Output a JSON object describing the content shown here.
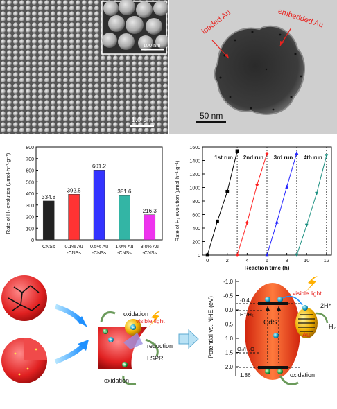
{
  "sem": {
    "scale_main": "1.0 μm",
    "scale_inset": "100 nm"
  },
  "tem": {
    "label_loaded": "loaded Au",
    "label_embedded": "embedded Au",
    "scale": "50 nm"
  },
  "chart_data": [
    {
      "type": "bar",
      "categories": [
        "CNSs",
        "0.1% Au\n-CNSs",
        "0.5% Au\n-CNSs",
        "1.0% Au\n-CNSs",
        "3.0% Au\n-CNSs"
      ],
      "values": [
        334.8,
        392.5,
        601.2,
        381.6,
        216.3
      ],
      "value_labels": [
        "334.8",
        "392.5",
        "601.2",
        "381.6",
        "216.3"
      ],
      "colors": [
        "#222222",
        "#ff3333",
        "#3333ff",
        "#33b5a5",
        "#ee33ee"
      ],
      "ylabel": "Rate of H₂ evolution (μmol·h⁻¹·g⁻¹)",
      "ylim": [
        0,
        800
      ],
      "yticks": [
        0,
        100,
        200,
        300,
        400,
        500,
        600,
        700,
        800
      ]
    },
    {
      "type": "line",
      "xlabel": "Reaction time (h)",
      "ylabel": "Rate of H₂ evolution (μmol·h⁻¹·g⁻¹)",
      "xlim": [
        -0.5,
        12.5
      ],
      "ylim": [
        0,
        1600
      ],
      "xticks": [
        0,
        2,
        4,
        6,
        8,
        10,
        12
      ],
      "yticks": [
        0,
        200,
        400,
        600,
        800,
        1000,
        1200,
        1400,
        1600
      ],
      "dividers": [
        3,
        6,
        9,
        12
      ],
      "series": [
        {
          "name": "1st run",
          "color": "#000000",
          "marker": "square",
          "x": [
            0,
            1,
            2,
            3
          ],
          "y": [
            0,
            500,
            940,
            1540
          ]
        },
        {
          "name": "2nd run",
          "color": "#ff2222",
          "marker": "diamond",
          "x": [
            3,
            4,
            5,
            6
          ],
          "y": [
            0,
            480,
            1040,
            1500
          ]
        },
        {
          "name": "3rd run",
          "color": "#2222ff",
          "marker": "triangle-up",
          "x": [
            6,
            7,
            8,
            9
          ],
          "y": [
            0,
            490,
            1010,
            1510
          ]
        },
        {
          "name": "4th run",
          "color": "#1a8f80",
          "marker": "triangle-down",
          "x": [
            9,
            10,
            11,
            12
          ],
          "y": [
            0,
            440,
            910,
            1470
          ]
        }
      ]
    }
  ],
  "scheme": {
    "visible_light": "visible light",
    "oxidation_top": "oxidation",
    "reduction": "reduction",
    "lspr": "LSPR",
    "oxidation_bottom": "oxidation",
    "electron": "e",
    "hole": "h",
    "energy": {
      "ylabel": "Potential vs. NHE (eV)",
      "ticks": [
        "-1.0",
        "-0.5",
        "0.0",
        "0.5",
        "1.0",
        "1.5",
        "2.0"
      ],
      "cb_value": "-0.4",
      "vb_value": "1.86",
      "h_couple": "H⁺/H₂",
      "o_couple": "O₂/H₂O",
      "cds": "CdS",
      "au": "Au",
      "visible_light": "visible light",
      "h_plus": "2H⁺",
      "h2": "H₂",
      "oxidation": "oxidation"
    }
  }
}
